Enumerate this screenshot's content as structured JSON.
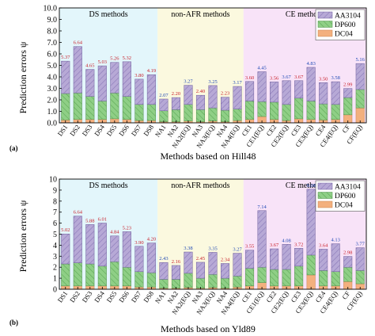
{
  "shared": {
    "ylabel": "Prediction errors ψ",
    "categories": [
      "DS1",
      "DS2",
      "DS3",
      "DS4",
      "DS5",
      "DS6",
      "DS7",
      "DS8",
      "NA1",
      "NA2",
      "NA2(EQ)",
      "NA3",
      "NA3(EQ)",
      "NA4",
      "NA4(EQ)",
      "CE1",
      "CE1(EQ)",
      "CE2",
      "CE2(EQ)",
      "CE3",
      "CE3(EQ)",
      "CE4",
      "CE4(EQ)",
      "CF",
      "CF(EQ)"
    ],
    "legend": [
      "AA3104",
      "DP600",
      "DC04"
    ],
    "group_labels": [
      "DS methods",
      "non-AFR methods",
      "CE methods"
    ],
    "colors": {
      "AA3104": "#b7a9d6",
      "DP600": "#8fcf86",
      "DC04": "#f3b07e",
      "DS_bg": "#e3f6fb",
      "NA_bg": "#fbf9df",
      "CE_bg": "#f8e3f8",
      "label": "#c8202a",
      "label_blue": "#1f49b5"
    }
  },
  "chart_data": [
    {
      "type": "bar",
      "panel": "(a)",
      "xlabel": "Methods based on Hill48",
      "ylabel": "Prediction errors ψ",
      "ylim": [
        0,
        10
      ],
      "yticks": [
        "0.0",
        "1.0",
        "2.0",
        "3.0",
        "4.0",
        "5.0",
        "6.0",
        "7.0",
        "8.0",
        "9.0",
        "10.0"
      ],
      "categories": [
        "DS1",
        "DS2",
        "DS3",
        "DS4",
        "DS5",
        "DS6",
        "DS7",
        "DS8",
        "NA1",
        "NA2",
        "NA2(EQ)",
        "NA3",
        "NA3(EQ)",
        "NA4",
        "NA4(EQ)",
        "CE1",
        "CE1(EQ)",
        "CE2",
        "CE2(EQ)",
        "CE3",
        "CE3(EQ)",
        "CE4",
        "CE4(EQ)",
        "CF",
        "CF(EQ)"
      ],
      "series": [
        {
          "name": "DC04",
          "values": [
            0.25,
            0.3,
            0.3,
            0.3,
            0.35,
            0.3,
            0.2,
            0.2,
            0.1,
            0.1,
            0.15,
            0.1,
            0.15,
            0.1,
            0.2,
            0.3,
            0.55,
            0.3,
            0.2,
            0.35,
            0.3,
            0.25,
            0.3,
            0.7,
            1.3
          ]
        },
        {
          "name": "DP600",
          "values": [
            2.3,
            2.3,
            2.0,
            1.6,
            2.25,
            2.0,
            1.4,
            1.4,
            0.95,
            1.05,
            1.45,
            1.05,
            1.15,
            1.0,
            1.0,
            1.6,
            1.3,
            1.5,
            1.4,
            1.8,
            1.6,
            1.4,
            1.3,
            1.5,
            1.6
          ]
        },
        {
          "name": "AA3104",
          "values": [
            2.82,
            4.04,
            2.35,
            3.06,
            2.66,
            3.02,
            2.2,
            2.59,
            1.02,
            1.05,
            1.67,
            1.25,
            1.95,
            1.13,
            1.97,
            1.7,
            2.6,
            1.76,
            2.07,
            1.52,
            2.93,
            1.85,
            1.98,
            0.79,
            2.26
          ]
        }
      ],
      "totals": [
        "5.37",
        "6.64",
        "4.65",
        "5.03",
        "5.26",
        "5.32",
        "3.80",
        "4.19",
        "2.07",
        "2.20",
        "3.27",
        "2.40",
        "3.25",
        "2.23",
        "3.17",
        "3.60",
        "4.45",
        "3.56",
        "3.67",
        "3.67",
        "4.83",
        "3.50",
        "3.58",
        "2.99",
        "5.16"
      ],
      "total_colors": [
        "red",
        "red",
        "red",
        "red",
        "red",
        "red",
        "red",
        "red",
        "blue",
        "red",
        "blue",
        "red",
        "blue",
        "red",
        "blue",
        "red",
        "blue",
        "red",
        "blue",
        "red",
        "blue",
        "red",
        "blue",
        "red",
        "blue"
      ],
      "groups": [
        {
          "label": "DS methods",
          "from": 0,
          "to": 7
        },
        {
          "label": "non-AFR methods",
          "from": 8,
          "to": 14
        },
        {
          "label": "CE methods",
          "from": 15,
          "to": 24
        }
      ],
      "legend": [
        "AA3104",
        "DP600",
        "DC04"
      ],
      "legend_position": "top-right",
      "grid": false
    },
    {
      "type": "bar",
      "panel": "(b)",
      "xlabel": "Methods based on Yld89",
      "ylabel": "Prediction errors ψ",
      "ylim": [
        0,
        10
      ],
      "yticks": [
        "0",
        "1",
        "2",
        "3",
        "4",
        "5",
        "6",
        "7",
        "8",
        "9",
        "10"
      ],
      "categories": [
        "DS1",
        "DS2",
        "DS3",
        "DS4",
        "DS5",
        "DS6",
        "DS7",
        "DS8",
        "NA1",
        "NA2",
        "NA2(EQ)",
        "NA3",
        "NA3(EQ)",
        "NA4",
        "NA4(EQ)",
        "CE1",
        "CE1(EQ)",
        "CE2",
        "CE2(EQ)",
        "CE3",
        "CE3(EQ)",
        "CE4",
        "CE4(EQ)",
        "CF",
        "CF(EQ)"
      ],
      "series": [
        {
          "name": "DC04",
          "values": [
            0.3,
            0.3,
            0.3,
            0.3,
            0.3,
            0.3,
            0.2,
            0.2,
            0.1,
            0.1,
            0.15,
            0.1,
            0.15,
            0.1,
            0.2,
            0.3,
            0.6,
            0.3,
            0.3,
            0.3,
            1.3,
            0.3,
            0.3,
            0.7,
            0.5
          ]
        },
        {
          "name": "DP600",
          "values": [
            2.0,
            2.1,
            2.0,
            1.8,
            2.2,
            1.7,
            1.4,
            1.3,
            0.8,
            0.8,
            1.3,
            0.9,
            1.2,
            0.9,
            1.0,
            1.6,
            1.4,
            1.5,
            1.5,
            1.8,
            1.8,
            1.4,
            1.3,
            1.3,
            1.2
          ]
        },
        {
          "name": "AA3104",
          "values": [
            2.72,
            4.24,
            3.58,
            3.91,
            2.34,
            3.23,
            2.3,
            2.7,
            1.53,
            1.26,
            1.93,
            1.45,
            2.0,
            1.34,
            2.07,
            1.65,
            5.14,
            1.87,
            2.28,
            1.62,
            5.98,
            1.94,
            2.53,
            0.98,
            2.07
          ]
        }
      ],
      "totals": [
        "5.02",
        "6.64",
        "5.88",
        "6.01",
        "4.84",
        "5.23",
        "3.90",
        "4.20",
        "2.43",
        "2.16",
        "3.38",
        "2.45",
        "3.35",
        "2.34",
        "3.27",
        "3.55",
        "7.14",
        "3.67",
        "4.08",
        "3.72",
        "9.08",
        "3.64",
        "4.13",
        "2.98",
        "3.77"
      ],
      "total_colors": [
        "red",
        "red",
        "red",
        "red",
        "red",
        "red",
        "red",
        "red",
        "blue",
        "red",
        "blue",
        "red",
        "blue",
        "red",
        "blue",
        "red",
        "blue",
        "red",
        "blue",
        "red",
        "blue",
        "red",
        "blue",
        "red",
        "blue"
      ],
      "groups": [
        {
          "label": "DS methods",
          "from": 0,
          "to": 7
        },
        {
          "label": "non-AFR methods",
          "from": 8,
          "to": 14
        },
        {
          "label": "CE methods",
          "from": 15,
          "to": 24
        }
      ],
      "legend": [
        "AA3104",
        "DP600",
        "DC04"
      ],
      "legend_position": "top-right",
      "grid": false
    }
  ]
}
